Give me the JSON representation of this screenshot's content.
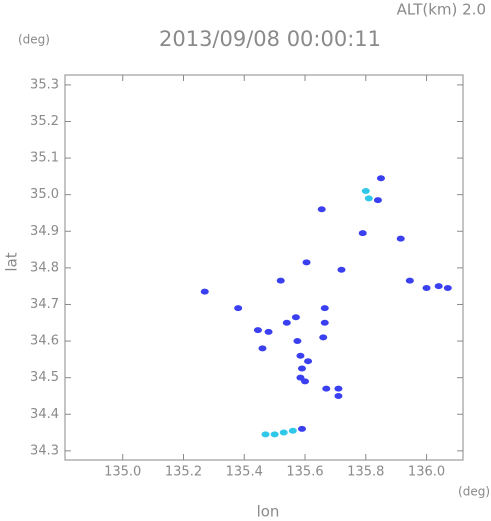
{
  "chart_data": {
    "type": "scatter",
    "title": "2013/09/08 00:00:11",
    "subtitle": "ALT(km) 2.0",
    "y_unit": "(deg)",
    "x_unit": "(deg)",
    "xlabel": "lon",
    "ylabel": "lat",
    "xlim": [
      134.81,
      136.12
    ],
    "ylim": [
      34.275,
      35.327
    ],
    "xticks": [
      {
        "value": 135,
        "label": "135.0"
      },
      135.2,
      135.4,
      135.6,
      135.8,
      {
        "value": 136,
        "label": "136.0"
      }
    ],
    "yticks": [
      34.3,
      34.4,
      34.5,
      34.6,
      34.7,
      34.8,
      34.9,
      {
        "value": 35,
        "label": "35.0"
      },
      35.1,
      35.2,
      35.3
    ],
    "series": [
      {
        "color": "#3a3ff0",
        "x": [
          135.85,
          135.84,
          135.655,
          135.79,
          135.915,
          135.605,
          135.72,
          135.27,
          135.52,
          136.0,
          136.04,
          136.07,
          135.945,
          135.38,
          135.54,
          135.57,
          135.665,
          135.665,
          135.445,
          135.48,
          135.46,
          135.575,
          135.585,
          135.61,
          135.59,
          135.585,
          135.6,
          135.66,
          135.67,
          135.71,
          135.71,
          135.59
        ],
        "y": [
          35.045,
          34.985,
          34.96,
          34.895,
          34.88,
          34.815,
          34.795,
          34.735,
          34.765,
          34.745,
          34.75,
          34.745,
          34.765,
          34.69,
          34.65,
          34.665,
          34.69,
          34.65,
          34.63,
          34.625,
          34.58,
          34.6,
          34.56,
          34.545,
          34.525,
          34.5,
          34.49,
          34.61,
          34.47,
          34.47,
          34.45,
          34.36
        ]
      },
      {
        "color": "#30c8e8",
        "x": [
          135.8,
          135.81,
          135.47,
          135.5,
          135.53,
          135.56
        ],
        "y": [
          35.01,
          34.99,
          34.345,
          34.345,
          34.35,
          34.355
        ]
      }
    ]
  }
}
